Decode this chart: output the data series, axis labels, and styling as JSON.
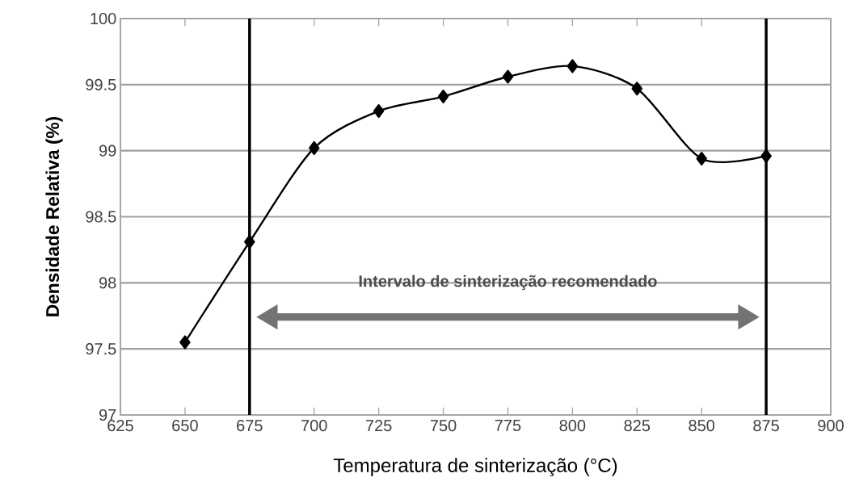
{
  "chart_data": {
    "type": "line",
    "xlabel": "Temperatura de sinterização (°C)",
    "ylabel": "Densidade Relativa (%)",
    "x": [
      650,
      675,
      700,
      725,
      750,
      775,
      800,
      825,
      850,
      875
    ],
    "series": [
      {
        "color": "#000000",
        "values": [
          97.55,
          98.31,
          99.02,
          99.3,
          99.41,
          99.56,
          99.64,
          99.47,
          98.94,
          98.96
        ]
      }
    ],
    "xlim": [
      625,
      900
    ],
    "ylim": [
      97,
      100
    ],
    "xticks": [
      625,
      650,
      675,
      700,
      725,
      750,
      775,
      800,
      825,
      850,
      875,
      900
    ],
    "yticks": [
      97,
      97.5,
      98,
      98.5,
      99,
      99.5,
      100
    ],
    "grid": "y",
    "marker": "diamond",
    "line_style": "solid",
    "ref_lines": [
      {
        "axis": "x",
        "value": 675,
        "color": "#000000"
      },
      {
        "axis": "x",
        "value": 875,
        "color": "#000000"
      }
    ],
    "annotations": [
      "Intervalo de sinterização recomendado"
    ]
  }
}
